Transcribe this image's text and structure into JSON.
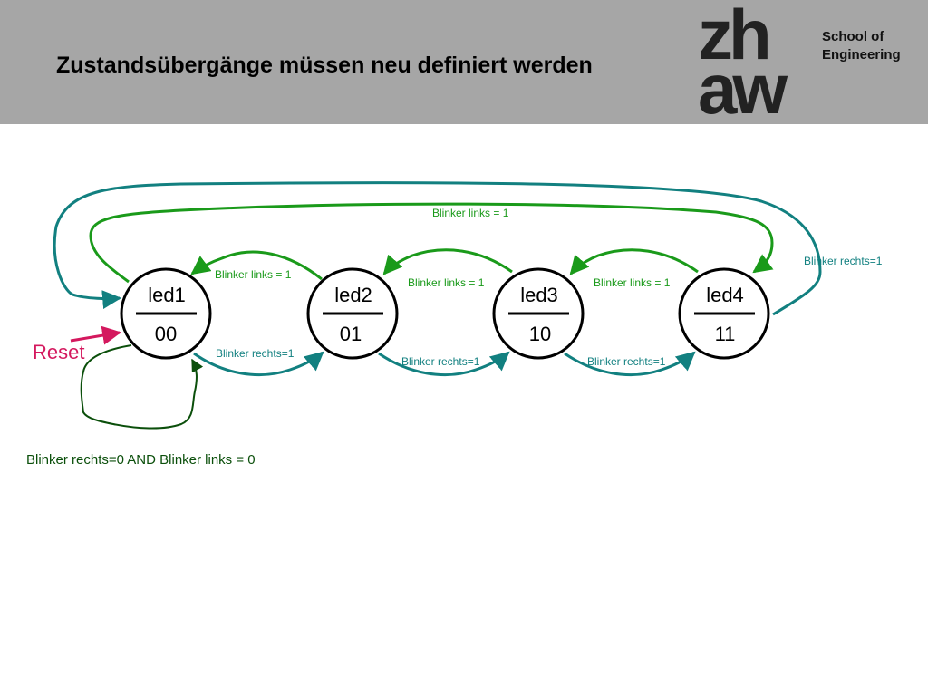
{
  "slide": {
    "title": "Zustandsübergänge müssen neu definiert werden"
  },
  "logo": {
    "line1": "zh",
    "line2": "aw",
    "school_line1": "School of",
    "school_line2": "Engineering"
  },
  "states": [
    {
      "name": "led1",
      "code": "00"
    },
    {
      "name": "led2",
      "code": "01"
    },
    {
      "name": "led3",
      "code": "10"
    },
    {
      "name": "led4",
      "code": "11"
    }
  ],
  "transitions": {
    "left_top": "Blinker links = 1",
    "left_2_1": "Blinker links = 1",
    "left_3_2": "Blinker links = 1",
    "left_4_3": "Blinker links = 1",
    "right_1_2": "Blinker rechts=1",
    "right_2_3": "Blinker rechts=1",
    "right_3_4": "Blinker rechts=1",
    "right_wrap": "Blinker rechts=1",
    "reset": "Reset",
    "self_loop_condition": "Blinker rechts=0 AND Blinker links = 0"
  },
  "colors": {
    "header_bg": "#a6a6a6",
    "links_arrow": "#1a9a1a",
    "rechts_arrow": "#128080",
    "reset": "#d4185e",
    "self_loop": "#0b4f0b"
  }
}
